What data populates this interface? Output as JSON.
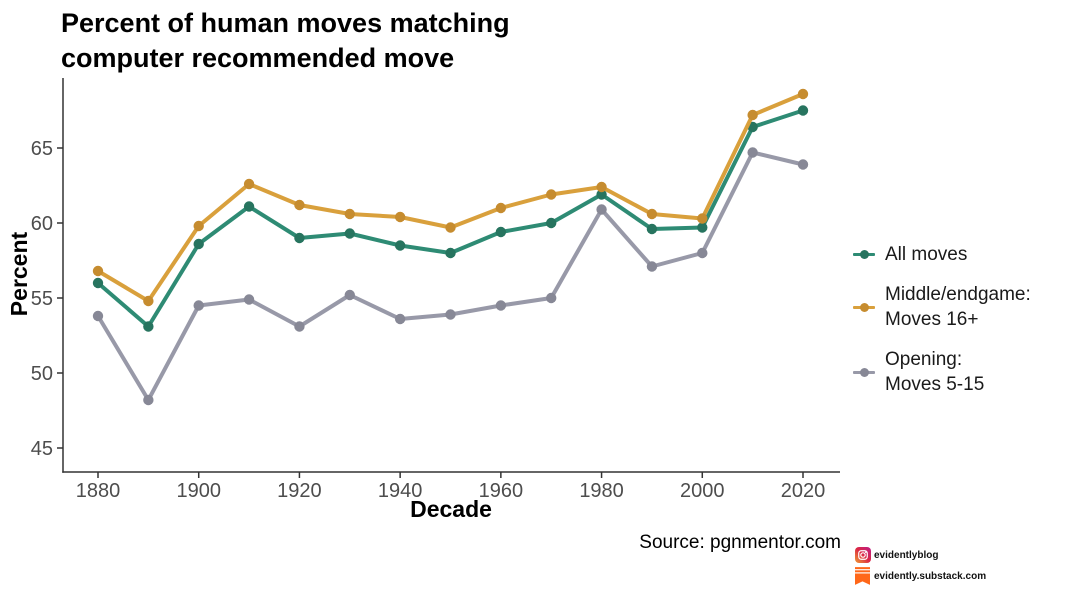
{
  "page": {
    "background": "#ffffff"
  },
  "colors": {
    "axis": "#333333",
    "tick_text": "#4d4d4d",
    "title_text": "#000000",
    "substack_orange": "#FF6719"
  },
  "chart_data": {
    "type": "line",
    "title": "Percent of human moves matching computer recommended move",
    "title_lines": [
      "Percent of human moves matching",
      "computer recommended move"
    ],
    "xlabel": "Decade",
    "ylabel": "Percent",
    "grid": false,
    "legend_position": "right",
    "xlim": [
      1873,
      2027
    ],
    "ylim": [
      43.4,
      69.7
    ],
    "x_ticks": [
      1880,
      1900,
      1920,
      1940,
      1960,
      1980,
      2000,
      2020
    ],
    "y_ticks": [
      45,
      50,
      55,
      60,
      65
    ],
    "x": [
      1880,
      1890,
      1900,
      1910,
      1920,
      1930,
      1940,
      1950,
      1960,
      1970,
      1980,
      1990,
      2000,
      2010,
      2020
    ],
    "series": [
      {
        "name": "All moves",
        "label_lines": [
          "All moves"
        ],
        "color": "#2e8b74",
        "point_color": "#27745f",
        "values": [
          56.0,
          53.1,
          58.6,
          61.1,
          59.0,
          59.3,
          58.5,
          58.0,
          59.4,
          60.0,
          61.9,
          59.6,
          59.7,
          66.4,
          67.5
        ]
      },
      {
        "name": "Middle/endgame: Moves 16+",
        "label_lines": [
          "Middle/endgame:",
          "Moves 16+"
        ],
        "color": "#d9a03c",
        "point_color": "#c68c2f",
        "values": [
          56.8,
          54.8,
          59.8,
          62.6,
          61.2,
          60.6,
          60.4,
          59.7,
          61.0,
          61.9,
          62.4,
          60.6,
          60.3,
          67.2,
          68.6
        ]
      },
      {
        "name": "Opening: Moves 5-15",
        "label_lines": [
          "Opening:",
          "Moves 5-15"
        ],
        "color": "#9899a8",
        "point_color": "#878896",
        "values": [
          53.8,
          48.2,
          54.5,
          54.9,
          53.1,
          55.2,
          53.6,
          53.9,
          54.5,
          55.0,
          60.9,
          57.1,
          58.0,
          64.7,
          63.9
        ]
      }
    ]
  },
  "footer": {
    "source_label": "Source: pgnmentor.com",
    "social": [
      {
        "icon": "instagram-icon",
        "label": "evidentlyblog"
      },
      {
        "icon": "substack-icon",
        "label": "evidently.substack.com"
      }
    ]
  }
}
